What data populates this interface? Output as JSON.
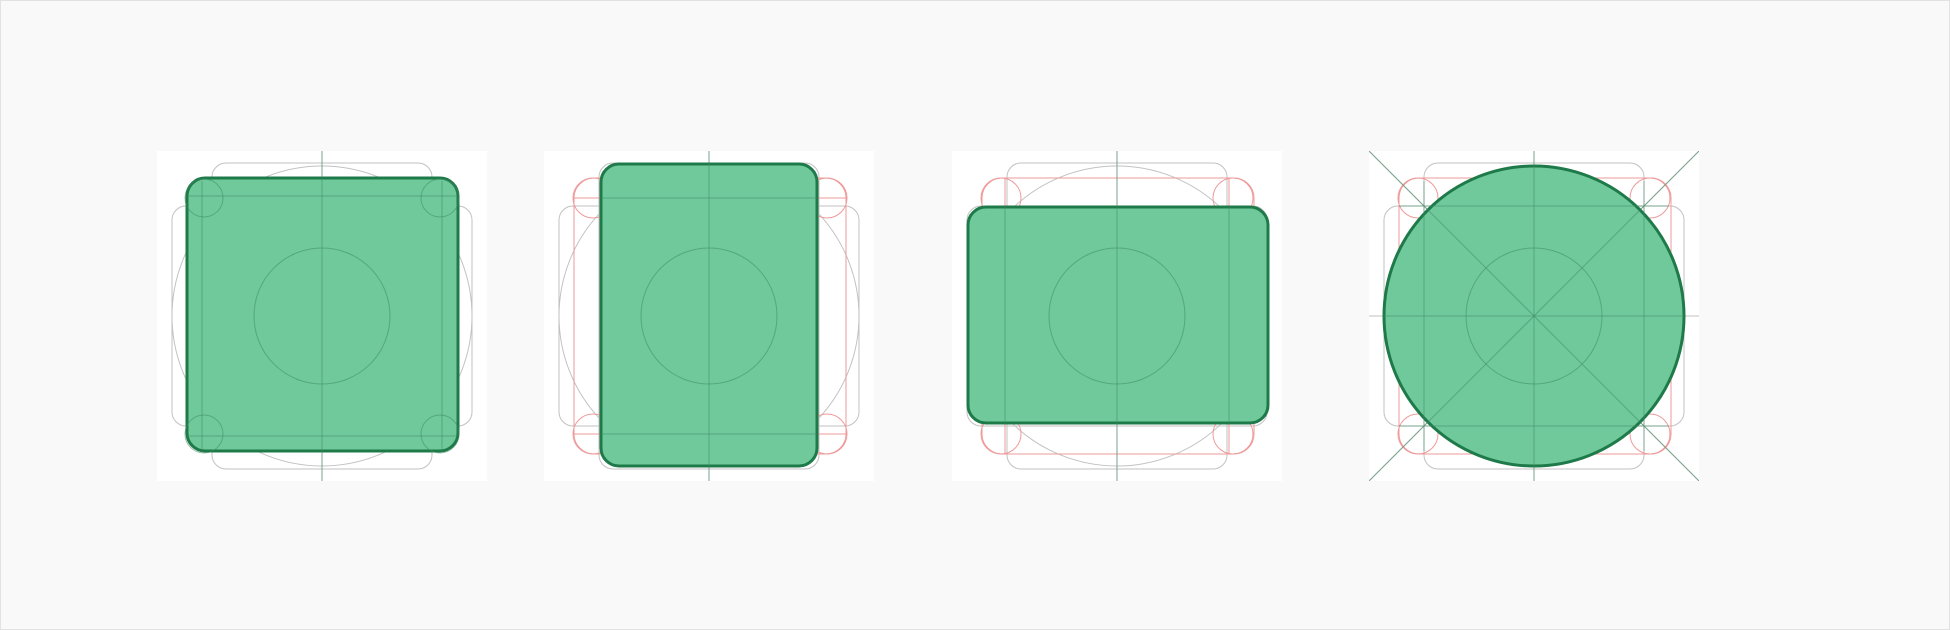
{
  "canvas": {
    "background": "#f9f9f9",
    "panel_background": "#ffffff"
  },
  "colors": {
    "shape_fill": "#6fc99b",
    "shape_stroke": "#1f7a4a",
    "keyline_grey": "#c2c2c2",
    "keyline_red": "#ee9a9a"
  },
  "panels": [
    {
      "name": "square-keyline-shape"
    },
    {
      "name": "portrait-rectangle-keyline-shape"
    },
    {
      "name": "landscape-rectangle-keyline-shape"
    },
    {
      "name": "circle-keyline-shape"
    }
  ]
}
